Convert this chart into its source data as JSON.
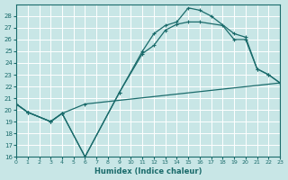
{
  "xlabel": "Humidex (Indice chaleur)",
  "bg_color": "#c8e6e6",
  "grid_color": "#b0d0d0",
  "line_color": "#1a6b6b",
  "xlim": [
    0,
    23
  ],
  "ylim": [
    16,
    29
  ],
  "xticks": [
    0,
    1,
    2,
    3,
    4,
    5,
    6,
    7,
    8,
    9,
    10,
    11,
    12,
    13,
    14,
    15,
    16,
    17,
    18,
    19,
    20,
    21,
    22,
    23
  ],
  "yticks": [
    16,
    17,
    18,
    19,
    20,
    21,
    22,
    23,
    24,
    25,
    26,
    27,
    28
  ],
  "line1_x": [
    0,
    1,
    3,
    4,
    6,
    23
  ],
  "line1_y": [
    20.5,
    19.8,
    19.0,
    19.7,
    20.5,
    22.3
  ],
  "line2_x": [
    0,
    1,
    3,
    4,
    6,
    9,
    11,
    12,
    13,
    14,
    15,
    16,
    17,
    19,
    20,
    21,
    22,
    23
  ],
  "line2_y": [
    20.5,
    19.8,
    19.0,
    19.7,
    16.0,
    21.5,
    25.0,
    26.5,
    27.2,
    27.5,
    28.7,
    28.5,
    28.0,
    26.5,
    26.2,
    23.5,
    23.0,
    22.3
  ],
  "line3_x": [
    0,
    1,
    3,
    4,
    6,
    9,
    11,
    12,
    13,
    14,
    15,
    16,
    18,
    19,
    20,
    21,
    22,
    23
  ],
  "line3_y": [
    20.5,
    19.8,
    19.0,
    19.7,
    16.0,
    21.5,
    24.8,
    25.5,
    26.8,
    27.3,
    27.5,
    27.5,
    27.2,
    26.0,
    26.0,
    23.5,
    23.0,
    22.3
  ]
}
